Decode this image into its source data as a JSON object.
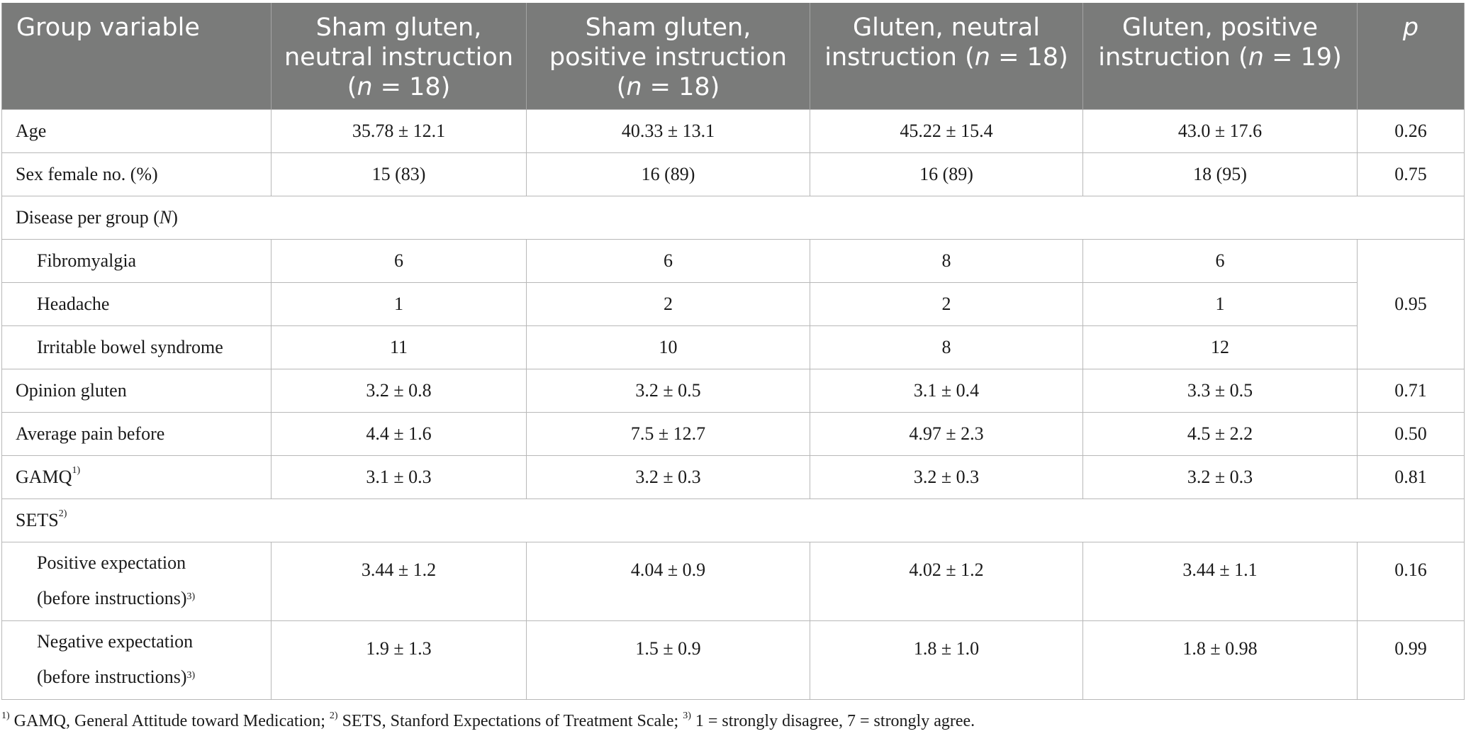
{
  "header": {
    "col0": "Group variable",
    "col1_line1": "Sham gluten,",
    "col1_line2": "neutral instruction",
    "col1_n": "18",
    "col2_line1": "Sham gluten,",
    "col2_line2": "positive instruction",
    "col2_n": "18",
    "col3_line1": "Gluten, neutral",
    "col3_line2": "instruction",
    "col3_n": "18",
    "col4_line1": "Gluten, positive",
    "col4_line2": "instruction",
    "col4_n": "19",
    "col5": "p",
    "n_letter": "n",
    "equals": " = "
  },
  "rows": {
    "age": {
      "label": "Age",
      "c1": "35.78 ± 12.1",
      "c2": "40.33 ± 13.1",
      "c3": "45.22 ± 15.4",
      "c4": "43.0 ± 17.6",
      "p": "0.26"
    },
    "sex": {
      "label": "Sex female no. (%)",
      "c1": "15 (83)",
      "c2": "16 (89)",
      "c3": "16 (89)",
      "c4": "18 (95)",
      "p": "0.75"
    },
    "disease": {
      "label": "Disease per group (",
      "label_n": "N",
      "label_close": ")"
    },
    "fibro": {
      "label": "Fibromyalgia",
      "c1": "6",
      "c2": "6",
      "c3": "8",
      "c4": "6"
    },
    "disease_p": "0.95",
    "headache": {
      "label": "Headache",
      "c1": "1",
      "c2": "2",
      "c3": "2",
      "c4": "1"
    },
    "ibs": {
      "label": "Irritable bowel syndrome",
      "c1": "11",
      "c2": "10",
      "c3": "8",
      "c4": "12"
    },
    "opinion": {
      "label": "Opinion gluten",
      "c1": "3.2 ± 0.8",
      "c2": "3.2 ± 0.5",
      "c3": "3.1 ± 0.4",
      "c4": "3.3 ± 0.5",
      "p": "0.71"
    },
    "pain": {
      "label": "Average pain before",
      "c1": "4.4 ± 1.6",
      "c2": "7.5 ± 12.7",
      "c3": "4.97 ± 2.3",
      "c4": "4.5 ± 2.2",
      "p": "0.50"
    },
    "gamq": {
      "label": "GAMQ",
      "sup": "1)",
      "c1": "3.1 ± 0.3",
      "c2": "3.2 ± 0.3",
      "c3": "3.2 ± 0.3",
      "c4": "3.2 ± 0.3",
      "p": "0.81"
    },
    "sets": {
      "label": "SETS",
      "sup": "2)"
    },
    "pos": {
      "label_line1": "Positive expectation",
      "label_line2": "(before instructions)",
      "sup": "3)",
      "c1": "3.44 ± 1.2",
      "c2": "4.04 ± 0.9",
      "c3": "4.02 ± 1.2",
      "c4": "3.44 ± 1.1",
      "p": "0.16"
    },
    "neg": {
      "label_line1": "Negative expectation",
      "label_line2": "(before instructions)",
      "sup": "3)",
      "c1": "1.9 ± 1.3",
      "c2": "1.5 ± 0.9",
      "c3": "1.8 ± 1.0",
      "c4": "1.8 ± 0.98",
      "p": "0.99"
    }
  },
  "footnote": {
    "s1": "1)",
    "t1": " GAMQ, General Attitude toward Medication; ",
    "s2": "2)",
    "t2": " SETS, Stanford Expectations of Treatment Scale; ",
    "s3": "3)",
    "t3": " 1 = strongly disagree, 7 = strongly agree."
  },
  "colors": {
    "header_bg": "#7a7b7a",
    "header_text": "#ffffff",
    "grid": "#b8b8b8"
  }
}
